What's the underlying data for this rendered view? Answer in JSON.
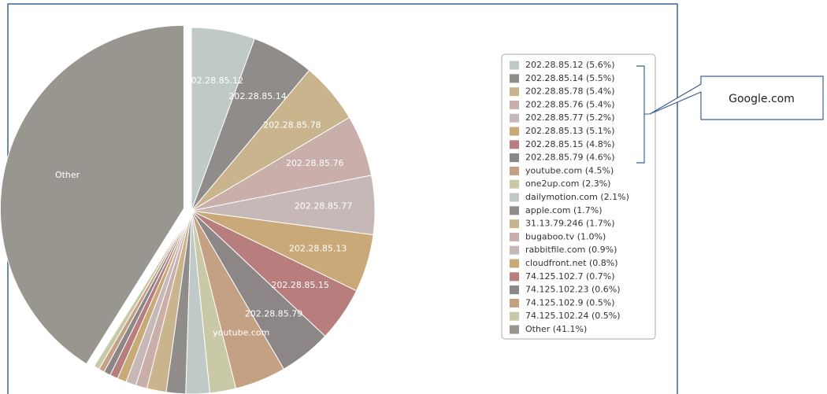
{
  "chart_data": {
    "type": "pie",
    "categories": [
      "202.28.85.12",
      "202.28.85.14",
      "202.28.85.78",
      "202.28.85.76",
      "202.28.85.77",
      "202.28.85.13",
      "202.28.85.15",
      "202.28.85.79",
      "youtube.com",
      "one2up.com",
      "dailymotion.com",
      "apple.com",
      "31.13.79.246",
      "bugaboo.tv",
      "rabbitfile.com",
      "cloudfront.net",
      "74.125.102.7",
      "74.125.102.23",
      "74.125.102.9",
      "74.125.102.24",
      "Other"
    ],
    "values": [
      5.6,
      5.5,
      5.4,
      5.4,
      5.2,
      5.1,
      4.8,
      4.6,
      4.5,
      2.3,
      2.1,
      1.7,
      1.7,
      1.0,
      0.9,
      0.8,
      0.7,
      0.6,
      0.5,
      0.5,
      41.1
    ],
    "value_labels": [
      "202.28.85.12 (5.6%)",
      "202.28.85.14 (5.5%)",
      "202.28.85.78 (5.4%)",
      "202.28.85.76 (5.4%)",
      "202.28.85.77 (5.2%)",
      "202.28.85.13 (5.1%)",
      "202.28.85.15 (4.8%)",
      "202.28.85.79 (4.6%)",
      "youtube.com (4.5%)",
      "one2up.com (2.3%)",
      "dailymotion.com (2.1%)",
      "apple.com (1.7%)",
      "31.13.79.246 (1.7%)",
      "bugaboo.tv (1.0%)",
      "rabbitfile.com (0.9%)",
      "cloudfront.net (0.8%)",
      "74.125.102.7 (0.7%)",
      "74.125.102.23 (0.6%)",
      "74.125.102.9 (0.5%)",
      "74.125.102.24 (0.5%)",
      "Other (41.1%)"
    ],
    "colors": [
      "#bfc9c8",
      "#8f8c8a",
      "#c9b48e",
      "#c9aeaa",
      "#c7b8b8",
      "#c9a978",
      "#b87d7d",
      "#8c8686",
      "#c4a182",
      "#c9c9a8",
      "#bfc9c8",
      "#8f8c8a",
      "#c9b48e",
      "#c9aeaa",
      "#c7b8b8",
      "#c9a978",
      "#b87d7d",
      "#8c8686",
      "#c4a182",
      "#c9c9a8",
      "#99958f"
    ],
    "slice_labels": [
      true,
      true,
      true,
      true,
      true,
      true,
      true,
      true,
      true,
      false,
      false,
      false,
      false,
      false,
      false,
      false,
      false,
      false,
      false,
      false,
      true
    ],
    "annotation": "Google.com"
  }
}
